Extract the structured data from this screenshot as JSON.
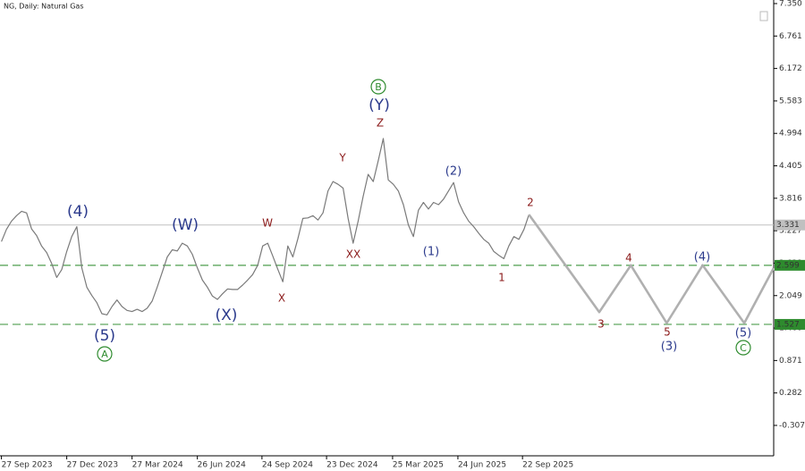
{
  "chart_data": {
    "type": "line",
    "title": "NG, Daily:  Natural Gas",
    "xlim": [
      "2023-09-25",
      "2026-09-07"
    ],
    "ylim": [
      -0.859,
      7.415
    ],
    "grid": false,
    "xticks": [
      {
        "value": "2023-09-27",
        "label": "27 Sep 2023"
      },
      {
        "value": "2023-12-27",
        "label": "27 Dec 2023"
      },
      {
        "value": "2024-03-27",
        "label": "27 Mar 2024"
      },
      {
        "value": "2024-06-26",
        "label": "26 Jun 2024"
      },
      {
        "value": "2024-09-24",
        "label": "24 Sep 2024"
      },
      {
        "value": "2024-12-23",
        "label": "23 Dec 2024"
      },
      {
        "value": "2025-03-25",
        "label": "25 Mar 2025"
      },
      {
        "value": "2025-06-24",
        "label": "24 Jun 2025"
      },
      {
        "value": "2025-09-22",
        "label": "22 Sep 2025"
      }
    ],
    "yticks": [
      {
        "value": 7.35,
        "label": "7.350"
      },
      6.761,
      6.172,
      5.583,
      4.994,
      4.405,
      3.816,
      3.227,
      2.638,
      2.049,
      {
        "value": 1.46,
        "label": "1.460"
      },
      0.871,
      0.282,
      -0.307
    ],
    "series": [
      {
        "color": "#7a7a7a",
        "x": [
          "2023-09-27",
          "2023-10-04",
          "2023-10-11",
          "2023-10-18",
          "2023-10-25",
          "2023-11-01",
          "2023-11-08",
          "2023-11-15",
          "2023-11-22",
          "2023-11-29",
          "2023-12-06",
          "2023-12-13",
          "2023-12-20",
          "2023-12-27",
          "2024-01-03",
          "2024-01-10",
          "2024-01-17",
          "2024-01-24",
          "2024-01-31",
          "2024-02-07",
          "2024-02-14",
          "2024-02-21",
          "2024-02-28",
          "2024-03-06",
          "2024-03-13",
          "2024-03-20",
          "2024-03-27",
          "2024-04-03",
          "2024-04-10",
          "2024-04-17",
          "2024-04-24",
          "2024-05-01",
          "2024-05-08",
          "2024-05-15",
          "2024-05-22",
          "2024-05-29",
          "2024-06-05",
          "2024-06-12",
          "2024-06-19",
          "2024-06-26",
          "2024-07-03",
          "2024-07-10",
          "2024-07-17",
          "2024-07-24",
          "2024-07-31",
          "2024-08-07",
          "2024-08-14",
          "2024-08-21",
          "2024-08-28",
          "2024-09-04",
          "2024-09-11",
          "2024-09-18",
          "2024-09-25",
          "2024-10-02",
          "2024-10-09",
          "2024-10-16",
          "2024-10-23",
          "2024-10-30",
          "2024-11-06",
          "2024-11-13",
          "2024-11-20",
          "2024-11-27",
          "2024-12-04",
          "2024-12-11",
          "2024-12-18",
          "2024-12-25",
          "2025-01-01",
          "2025-01-08",
          "2025-01-15",
          "2025-01-22",
          "2025-01-29",
          "2025-02-05",
          "2025-02-12",
          "2025-02-19",
          "2025-02-26",
          "2025-03-05",
          "2025-03-12",
          "2025-03-19",
          "2025-03-26",
          "2025-04-02",
          "2025-04-09",
          "2025-04-16",
          "2025-04-23",
          "2025-04-30",
          "2025-05-07",
          "2025-05-14",
          "2025-05-21",
          "2025-05-28",
          "2025-06-04",
          "2025-06-11",
          "2025-06-18",
          "2025-06-25",
          "2025-07-02",
          "2025-07-09",
          "2025-07-16",
          "2025-07-23",
          "2025-07-30",
          "2025-08-06",
          "2025-08-13",
          "2025-08-20",
          "2025-08-27",
          "2025-09-03",
          "2025-09-10",
          "2025-09-17",
          "2025-09-24",
          "2025-10-01"
        ],
        "values": [
          3.03,
          3.25,
          3.4,
          3.5,
          3.58,
          3.55,
          3.26,
          3.14,
          2.95,
          2.83,
          2.63,
          2.38,
          2.52,
          2.85,
          3.12,
          3.3,
          2.55,
          2.2,
          2.05,
          1.92,
          1.72,
          1.7,
          1.85,
          1.97,
          1.85,
          1.78,
          1.76,
          1.8,
          1.76,
          1.82,
          1.95,
          2.2,
          2.47,
          2.75,
          2.88,
          2.86,
          3.0,
          2.95,
          2.8,
          2.55,
          2.33,
          2.2,
          2.04,
          1.98,
          2.08,
          2.17,
          2.16,
          2.16,
          2.24,
          2.33,
          2.43,
          2.6,
          2.95,
          3.0,
          2.77,
          2.53,
          2.3,
          2.95,
          2.75,
          3.08,
          3.45,
          3.46,
          3.5,
          3.42,
          3.55,
          3.95,
          4.12,
          4.07,
          4.0,
          3.45,
          3.0,
          3.4,
          3.85,
          4.25,
          4.12,
          4.5,
          4.9,
          4.15,
          4.07,
          3.95,
          3.7,
          3.33,
          3.12,
          3.6,
          3.74,
          3.62,
          3.74,
          3.7,
          3.8,
          3.95,
          4.1,
          3.75,
          3.55,
          3.4,
          3.3,
          3.18,
          3.07,
          3.0,
          2.85,
          2.78,
          2.72,
          2.95,
          3.12,
          3.07,
          3.25,
          3.52
        ]
      },
      {
        "color": "#b0b0b0",
        "x": [
          "2025-10-01",
          "2026-01-07",
          "2026-02-20",
          "2026-04-11",
          "2026-05-31",
          "2026-07-28",
          "2026-09-07"
        ],
        "values": [
          3.52,
          1.75,
          2.6,
          1.55,
          2.6,
          1.55,
          2.55
        ]
      }
    ],
    "last_price": {
      "value": 3.331,
      "label": "3.331",
      "color": "#c0c0c0"
    },
    "levels": [
      {
        "value": 2.599,
        "label": "2.599",
        "color": "#2e8b2e"
      },
      {
        "value": 1.527,
        "label": "1.527",
        "color": "#2e8b2e"
      }
    ],
    "annotations": [
      {
        "text": "(4)",
        "color": "#2b3a8c"
      },
      {
        "text": "(5)",
        "color": "#2b3a8c"
      },
      {
        "text": "A",
        "color": "#2e8b2e",
        "circled": true
      },
      {
        "text": "(W)",
        "color": "#2b3a8c"
      },
      {
        "text": "(X)",
        "color": "#2b3a8c"
      },
      {
        "text": "W",
        "color": "#8b1a1a"
      },
      {
        "text": "X",
        "color": "#8b1a1a"
      },
      {
        "text": "Y",
        "color": "#8b1a1a"
      },
      {
        "text": "XX",
        "color": "#8b1a1a"
      },
      {
        "text": "Z",
        "color": "#8b1a1a"
      },
      {
        "text": "(Y)",
        "color": "#2b3a8c"
      },
      {
        "text": "B",
        "color": "#2e8b2e",
        "circled": true
      },
      {
        "text": "(1)",
        "color": "#2b3a8c"
      },
      {
        "text": "(2)",
        "color": "#2b3a8c"
      },
      {
        "text": "1",
        "color": "#8b1a1a"
      },
      {
        "text": "2",
        "color": "#8b1a1a"
      },
      {
        "text": "3",
        "color": "#8b1a1a"
      },
      {
        "text": "4",
        "color": "#8b1a1a"
      },
      {
        "text": "5",
        "color": "#8b1a1a"
      },
      {
        "text": "(3)",
        "color": "#2b3a8c"
      },
      {
        "text": "(4)",
        "color": "#2b3a8c"
      },
      {
        "text": "(5)",
        "color": "#2b3a8c"
      },
      {
        "text": "C",
        "color": "#2e8b2e",
        "circled": true
      }
    ]
  }
}
